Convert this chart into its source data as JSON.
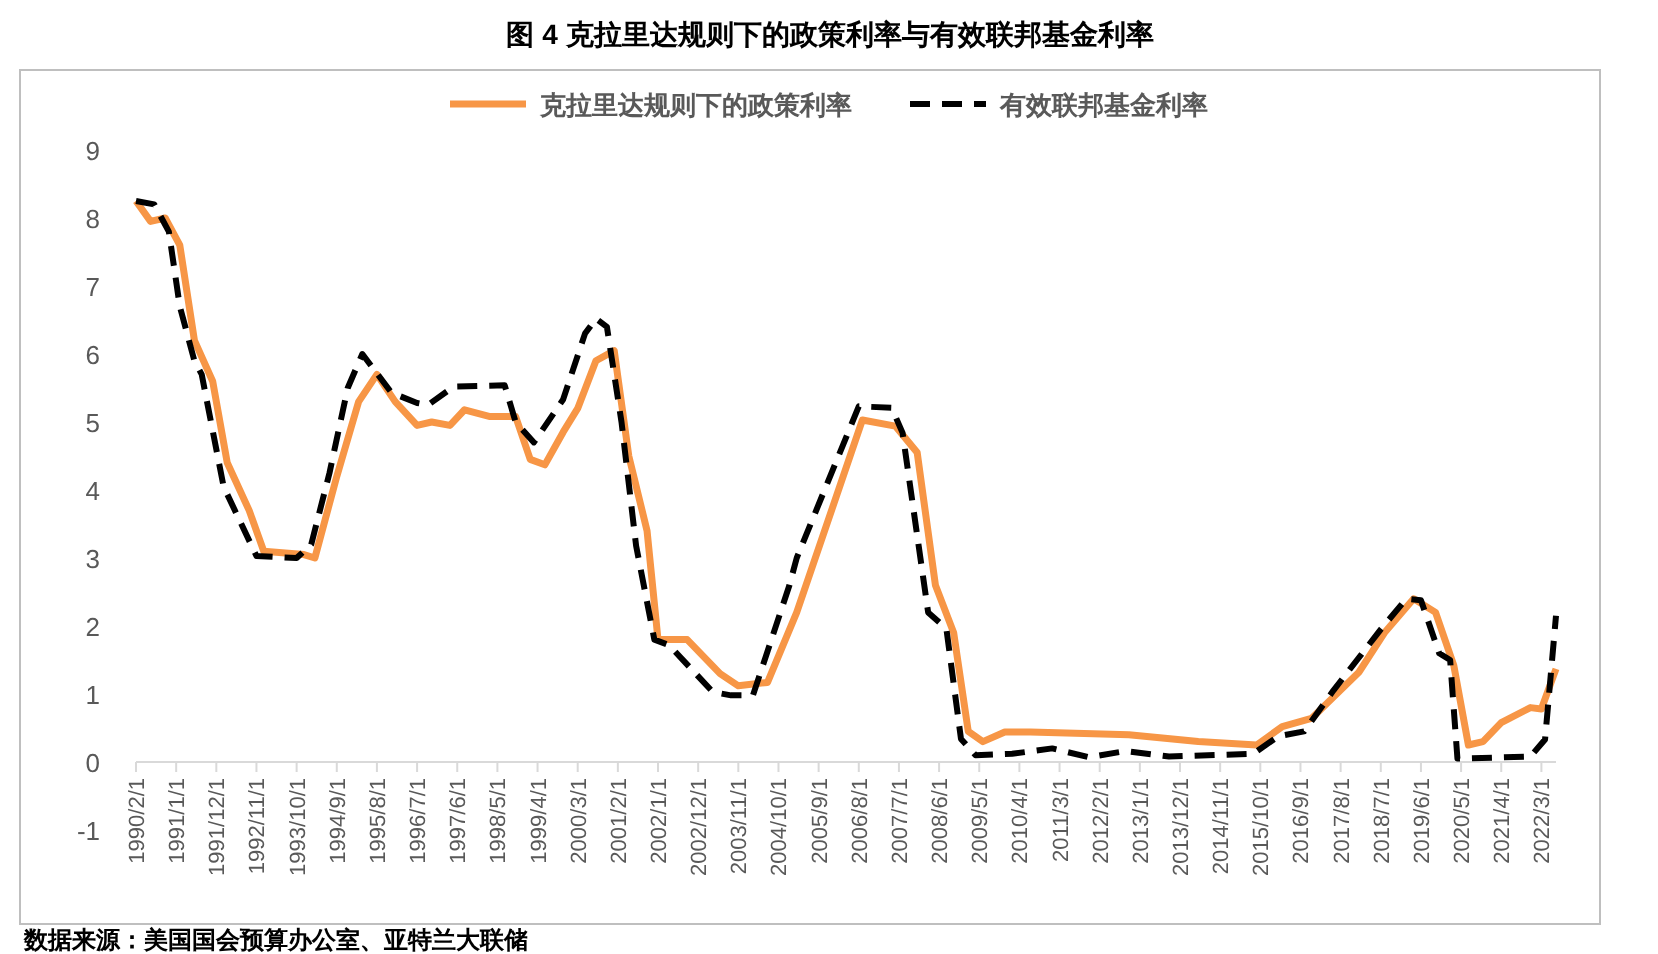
{
  "chart_data": {
    "type": "line",
    "title": "图 4  克拉里达规则下的政策利率与有效联邦基金利率",
    "annotations": [
      "数据来源：美国国会预算办公室、亚特兰大联储"
    ],
    "legend": "top",
    "grid": false,
    "xlim": [
      "1990-02",
      "2022-07"
    ],
    "ylim": [
      -1,
      9
    ],
    "yticks": [
      -1,
      0,
      1,
      2,
      3,
      4,
      5,
      6,
      7,
      8,
      9
    ],
    "xticks": [
      {
        "value": "1990-02",
        "label": "1990/2/1"
      },
      {
        "value": "1991-01",
        "label": "1991/1/1"
      },
      {
        "value": "1991-12",
        "label": "1991/12/1"
      },
      {
        "value": "1992-11",
        "label": "1992/11/1"
      },
      {
        "value": "1993-10",
        "label": "1993/10/1"
      },
      {
        "value": "1994-09",
        "label": "1994/9/1"
      },
      {
        "value": "1995-08",
        "label": "1995/8/1"
      },
      {
        "value": "1996-07",
        "label": "1996/7/1"
      },
      {
        "value": "1997-06",
        "label": "1997/6/1"
      },
      {
        "value": "1998-05",
        "label": "1998/5/1"
      },
      {
        "value": "1999-04",
        "label": "1999/4/1"
      },
      {
        "value": "2000-03",
        "label": "2000/3/1"
      },
      {
        "value": "2001-02",
        "label": "2001/2/1"
      },
      {
        "value": "2002-01",
        "label": "2002/1/1"
      },
      {
        "value": "2002-12",
        "label": "2002/12/1"
      },
      {
        "value": "2003-11",
        "label": "2003/11/1"
      },
      {
        "value": "2004-10",
        "label": "2004/10/1"
      },
      {
        "value": "2005-09",
        "label": "2005/9/1"
      },
      {
        "value": "2006-08",
        "label": "2006/8/1"
      },
      {
        "value": "2007-07",
        "label": "2007/7/1"
      },
      {
        "value": "2008-06",
        "label": "2008/6/1"
      },
      {
        "value": "2009-05",
        "label": "2009/5/1"
      },
      {
        "value": "2010-04",
        "label": "2010/4/1"
      },
      {
        "value": "2011-03",
        "label": "2011/3/1"
      },
      {
        "value": "2012-02",
        "label": "2012/2/1"
      },
      {
        "value": "2013-01",
        "label": "2013/1/1"
      },
      {
        "value": "2013-12",
        "label": "2013/12/1"
      },
      {
        "value": "2014-11",
        "label": "2014/11/1"
      },
      {
        "value": "2015-10",
        "label": "2015/10/1"
      },
      {
        "value": "2016-09",
        "label": "2016/9/1"
      },
      {
        "value": "2017-08",
        "label": "2017/8/1"
      },
      {
        "value": "2018-07",
        "label": "2018/7/1"
      },
      {
        "value": "2019-06",
        "label": "2019/6/1"
      },
      {
        "value": "2020-05",
        "label": "2020/5/1"
      },
      {
        "value": "2021-04",
        "label": "2021/4/1"
      },
      {
        "value": "2022-03",
        "label": "2022/3/1"
      }
    ],
    "series": [
      {
        "name": "克拉里达规则下的政策利率",
        "color": "#f79646",
        "line_style": "solid",
        "x": [
          "1990-02",
          "1990-06",
          "1990-10",
          "1991-02",
          "1991-06",
          "1991-11",
          "1992-03",
          "1992-09",
          "1993-01",
          "1993-12",
          "1994-03",
          "1994-09",
          "1995-03",
          "1995-08",
          "1996-01",
          "1996-07",
          "1996-11",
          "1997-04",
          "1997-08",
          "1998-03",
          "1998-10",
          "1999-02",
          "1999-06",
          "1999-11",
          "2000-03",
          "2000-08",
          "2001-01",
          "2001-05",
          "2001-10",
          "2002-01",
          "2002-09",
          "2003-06",
          "2003-11",
          "2004-07",
          "2005-03",
          "2006-09",
          "2007-06",
          "2007-12",
          "2008-05",
          "2008-10",
          "2009-02",
          "2009-06",
          "2009-12",
          "2010-07",
          "2012-10",
          "2014-05",
          "2015-09",
          "2016-04",
          "2016-12",
          "2018-01",
          "2018-08",
          "2019-04",
          "2019-10",
          "2020-03",
          "2020-07",
          "2020-11",
          "2021-04",
          "2021-12",
          "2022-03",
          "2022-07"
        ],
        "values": [
          8.25,
          7.95,
          8.0,
          7.6,
          6.2,
          5.6,
          4.4,
          3.7,
          3.1,
          3.05,
          3.0,
          4.2,
          5.3,
          5.7,
          5.3,
          4.95,
          5.0,
          4.95,
          5.18,
          5.08,
          5.08,
          4.45,
          4.37,
          4.85,
          5.2,
          5.9,
          6.05,
          4.5,
          3.4,
          1.8,
          1.8,
          1.3,
          1.12,
          1.17,
          2.2,
          5.03,
          4.94,
          4.55,
          2.6,
          1.9,
          0.45,
          0.3,
          0.44,
          0.44,
          0.4,
          0.3,
          0.25,
          0.52,
          0.64,
          1.32,
          1.9,
          2.4,
          2.2,
          1.42,
          0.25,
          0.3,
          0.58,
          0.8,
          0.78,
          1.37
        ]
      },
      {
        "name": "有效联邦基金利率",
        "color": "#000000",
        "line_style": "dashed",
        "x": [
          "1990-02",
          "1990-07",
          "1990-11",
          "1991-02",
          "1991-06",
          "1991-08",
          "1992-02",
          "1992-11",
          "1993-10",
          "1994-02",
          "1994-07",
          "1994-12",
          "1995-04",
          "1995-12",
          "1996-07",
          "1996-10",
          "1997-05",
          "1998-07",
          "1998-10",
          "1999-03",
          "1999-11",
          "2000-05",
          "2000-08",
          "2000-11",
          "2001-03",
          "2001-07",
          "2001-12",
          "2002-04",
          "2003-04",
          "2003-09",
          "2004-03",
          "2005-01",
          "2005-03",
          "2006-08",
          "2007-05",
          "2007-08",
          "2008-03",
          "2008-08",
          "2008-12",
          "2009-04",
          "2010-02",
          "2011-01",
          "2011-11",
          "2012-09",
          "2013-09",
          "2015-08",
          "2016-03",
          "2016-10",
          "2017-06",
          "2018-07",
          "2019-02",
          "2019-06",
          "2019-11",
          "2020-02",
          "2020-04",
          "2021-12",
          "2022-04",
          "2022-07"
        ],
        "values": [
          8.25,
          8.2,
          7.8,
          6.7,
          5.9,
          5.7,
          4.05,
          3.03,
          3.0,
          3.2,
          4.25,
          5.5,
          6.0,
          5.43,
          5.28,
          5.25,
          5.52,
          5.54,
          5.0,
          4.7,
          5.33,
          6.3,
          6.52,
          6.4,
          5.0,
          3.18,
          1.8,
          1.72,
          1.03,
          0.98,
          0.98,
          2.6,
          3.0,
          5.23,
          5.21,
          4.84,
          2.2,
          1.96,
          0.34,
          0.1,
          0.12,
          0.2,
          0.07,
          0.16,
          0.08,
          0.12,
          0.38,
          0.45,
          1.05,
          1.95,
          2.4,
          2.38,
          1.6,
          1.5,
          0.05,
          0.08,
          0.33,
          2.15
        ]
      }
    ]
  }
}
